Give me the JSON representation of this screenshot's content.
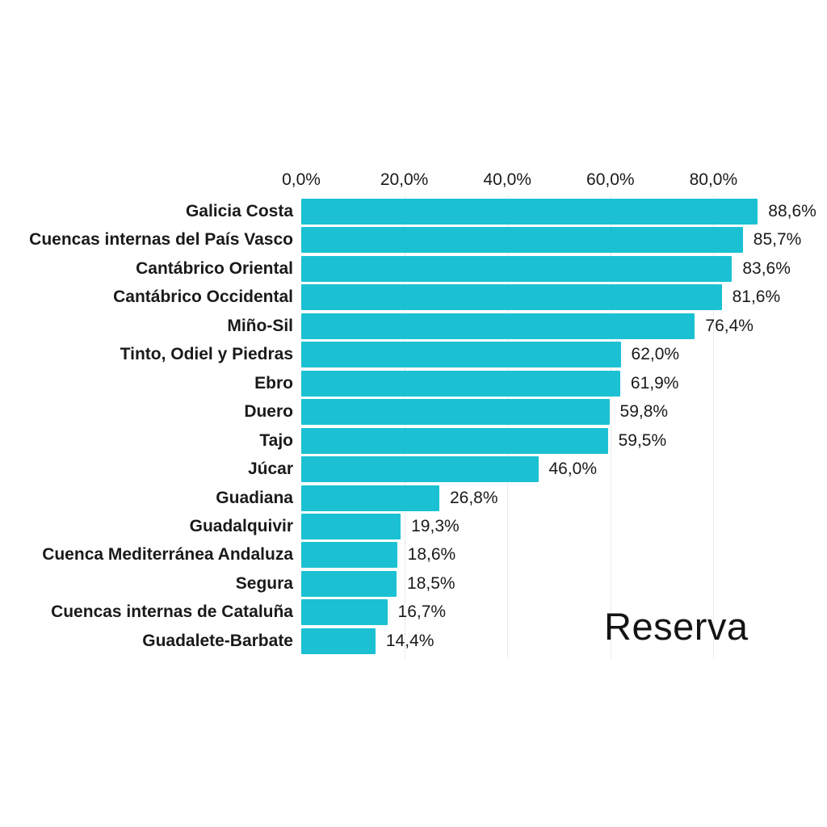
{
  "chart_data": {
    "type": "bar",
    "orientation": "horizontal",
    "title": "",
    "annotation": "Reserva",
    "categories": [
      "Galicia Costa",
      "Cuencas internas del País Vasco",
      "Cantábrico Oriental",
      "Cantábrico Occidental",
      "Miño-Sil",
      "Tinto, Odiel y Piedras",
      "Ebro",
      "Duero",
      "Tajo",
      "Júcar",
      "Guadiana",
      "Guadalquivir",
      "Cuenca Mediterránea Andaluza",
      "Segura",
      "Cuencas internas de Cataluña",
      "Guadalete-Barbate"
    ],
    "values": [
      88.6,
      85.7,
      83.6,
      81.6,
      76.4,
      62.0,
      61.9,
      59.8,
      59.5,
      46.0,
      26.8,
      19.3,
      18.6,
      18.5,
      16.7,
      14.4
    ],
    "value_labels": [
      "88,6%",
      "85,7%",
      "83,6%",
      "81,6%",
      "76,4%",
      "62,0%",
      "61,9%",
      "59,8%",
      "59,5%",
      "46,0%",
      "26,8%",
      "19,3%",
      "18,6%",
      "18,5%",
      "16,7%",
      "14,4%"
    ],
    "x_tick_labels": [
      "0,0%",
      "20,0%",
      "40,0%",
      "60,0%",
      "80,0%"
    ],
    "x_tick_values": [
      0,
      20,
      40,
      60,
      80
    ],
    "xlim": [
      0,
      100
    ],
    "grid": true,
    "gridline_ticks": [
      20,
      40,
      60,
      80
    ],
    "legend": "none",
    "bar_color": "#1BC1D3",
    "text_color": "#1a1a1a",
    "annotation_color": "#141414",
    "gridline_color": "#ebebeb",
    "background_color": "#ffffff"
  }
}
